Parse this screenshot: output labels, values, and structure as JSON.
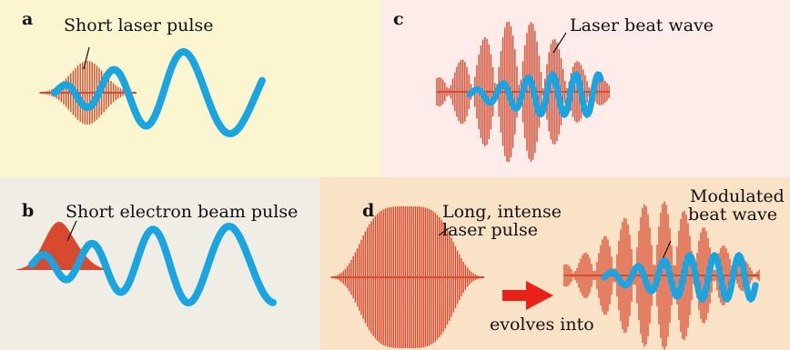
{
  "panels": {
    "a": {
      "letter": "a",
      "label": "Short laser pulse"
    },
    "b": {
      "letter": "b",
      "label": "Short electron beam pulse"
    },
    "c": {
      "letter": "c",
      "label": "Laser beat wave"
    },
    "d": {
      "letter": "d",
      "label_long_1": "Long, intense",
      "label_long_2": "laser pulse",
      "label_arrow": "evolves into",
      "label_mod_1": "Modulated",
      "label_mod_2": "beat wave"
    }
  },
  "colors": {
    "panel_a": "#fbf6cf",
    "panel_b": "#f0ede4",
    "panel_c": "#fdecea",
    "panel_d": "#fae2c6",
    "laser_red": "#d84a2f",
    "plasma_wave_blue": "#1aa5e0",
    "arrow_red": "#e8221b"
  }
}
